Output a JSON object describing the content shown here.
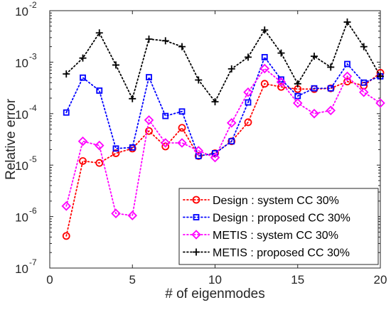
{
  "chart_data": {
    "type": "line",
    "title": "",
    "xlabel": "# of eigenmodes",
    "ylabel": "Relative error",
    "yscale": "log",
    "xlim": [
      0,
      20
    ],
    "ylim": [
      1e-07,
      0.01
    ],
    "x_ticks": [
      0,
      5,
      10,
      15,
      20
    ],
    "y_ticks": [
      {
        "value": 1e-07,
        "base": "10",
        "exp": "-7"
      },
      {
        "value": 1e-06,
        "base": "10",
        "exp": "-6"
      },
      {
        "value": 1e-05,
        "base": "10",
        "exp": "-5"
      },
      {
        "value": 0.0001,
        "base": "10",
        "exp": "-4"
      },
      {
        "value": 0.001,
        "base": "10",
        "exp": "-3"
      },
      {
        "value": 0.01,
        "base": "10",
        "exp": "-2"
      }
    ],
    "grid": false,
    "legend_position": "bottom-right",
    "x": [
      1,
      2,
      3,
      4,
      5,
      6,
      7,
      8,
      9,
      10,
      11,
      12,
      13,
      14,
      15,
      16,
      17,
      18,
      19,
      20
    ],
    "series": [
      {
        "name": "Design : system CC 30%",
        "color": "#ff0000",
        "marker": "circle",
        "line_style": "dotted",
        "values": [
          4.2e-07,
          1.2e-05,
          1.1e-05,
          1.7e-05,
          2.1e-05,
          4.6e-05,
          2.3e-05,
          5.3e-05,
          1.5e-05,
          1.7e-05,
          2.9e-05,
          6.8e-05,
          0.00038,
          0.00033,
          0.0003,
          0.0003,
          0.00031,
          0.00042,
          0.00035,
          0.00062
        ]
      },
      {
        "name": "Design : proposed CC 30%",
        "color": "#0000ff",
        "marker": "square",
        "line_style": "dotted",
        "values": [
          0.000105,
          0.0005,
          0.00028,
          2.1e-05,
          2.2e-05,
          0.00051,
          9e-05,
          0.00011,
          1.5e-05,
          1.7e-05,
          2.9e-05,
          0.000165,
          0.00125,
          0.00046,
          0.00022,
          0.00031,
          0.00031,
          0.00092,
          0.0004,
          0.00053
        ]
      },
      {
        "name": "METIS : system CC 30%",
        "color": "#ff00ff",
        "marker": "diamond",
        "line_style": "dotted",
        "values": [
          1.6e-06,
          2.9e-05,
          2.4e-05,
          1.15e-06,
          1.05e-06,
          7.5e-05,
          2.7e-05,
          2.7e-05,
          1.9e-05,
          1.4e-05,
          6.6e-05,
          0.00026,
          0.00075,
          0.00041,
          0.00016,
          0.0001,
          0.000115,
          0.00053,
          0.00026,
          0.00016
        ]
      },
      {
        "name": "METIS : proposed CC 30%",
        "color": "#000000",
        "marker": "plus",
        "line_style": "dotted",
        "values": [
          0.00059,
          0.0012,
          0.0037,
          0.00088,
          0.000195,
          0.0028,
          0.0026,
          0.002,
          0.00045,
          0.00017,
          0.00074,
          0.00125,
          0.0042,
          0.0015,
          0.00038,
          0.0013,
          0.0008,
          0.006,
          0.002,
          0.00053
        ]
      }
    ]
  }
}
